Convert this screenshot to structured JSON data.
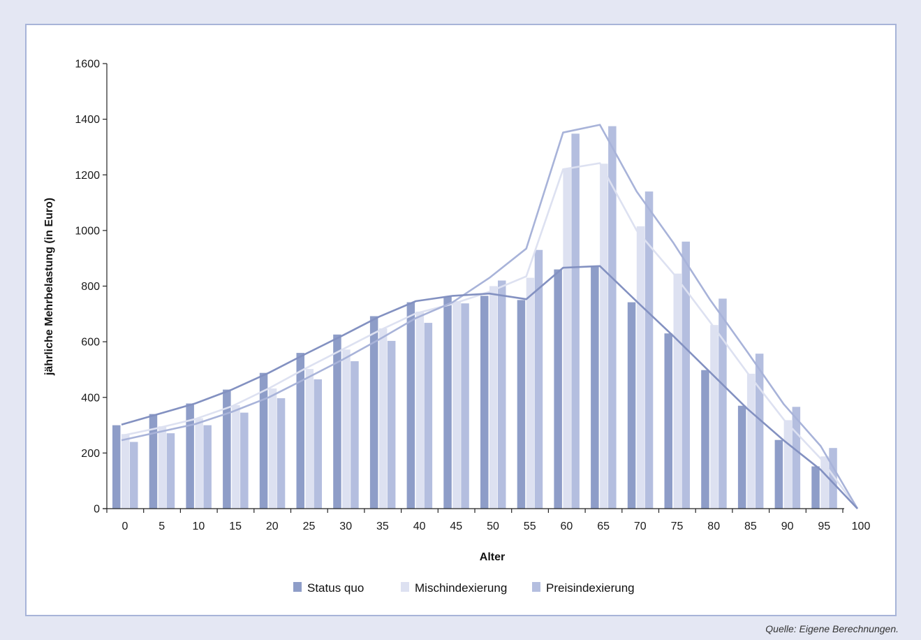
{
  "source_note": "Quelle: Eigene Berechnungen.",
  "chart_data": {
    "type": "bar",
    "xlabel": "Alter",
    "ylabel": "jährliche Mehrbelastung (in Euro)",
    "ylim": [
      0,
      1600
    ],
    "yticks": [
      0,
      200,
      400,
      600,
      800,
      1000,
      1200,
      1400,
      1600
    ],
    "categories": [
      "0",
      "5",
      "10",
      "15",
      "20",
      "25",
      "30",
      "35",
      "40",
      "45",
      "50",
      "55",
      "60",
      "65",
      "70",
      "75",
      "80",
      "85",
      "90",
      "95"
    ],
    "x_tick_labels": [
      "0",
      "5",
      "10",
      "15",
      "20",
      "25",
      "30",
      "35",
      "40",
      "45",
      "50",
      "55",
      "60",
      "65",
      "70",
      "75",
      "80",
      "85",
      "90",
      "95",
      "100"
    ],
    "grid": false,
    "legend_position": "bottom",
    "series": [
      {
        "name": "Status quo",
        "color": "#8e9dc8",
        "values": [
          300,
          340,
          378,
          428,
          488,
          560,
          626,
          692,
          742,
          763,
          765,
          750,
          860,
          870,
          742,
          630,
          498,
          370,
          247,
          152
        ],
        "trend": [
          302,
          340,
          378,
          428,
          488,
          556,
          622,
          690,
          746,
          765,
          773,
          753,
          866,
          872,
          745,
          620,
          490,
          360,
          245,
          140,
          0
        ]
      },
      {
        "name": "Mischindexierung",
        "color": "#dde1f1",
        "values": [
          268,
          296,
          325,
          372,
          432,
          502,
          572,
          648,
          708,
          746,
          800,
          830,
          1222,
          1240,
          1015,
          845,
          660,
          485,
          318,
          188
        ],
        "trend": [
          262,
          290,
          322,
          368,
          432,
          504,
          572,
          640,
          702,
          736,
          780,
          835,
          1220,
          1242,
          1000,
          845,
          670,
          490,
          320,
          180,
          0
        ]
      },
      {
        "name": "Preisindexierung",
        "color": "#b4bedf",
        "values": [
          240,
          271,
          300,
          345,
          397,
          465,
          530,
          603,
          668,
          738,
          820,
          930,
          1348,
          1375,
          1140,
          960,
          755,
          557,
          366,
          218
        ],
        "trend": [
          246,
          275,
          304,
          348,
          400,
          467,
          535,
          608,
          685,
          742,
          830,
          935,
          1352,
          1380,
          1140,
          955,
          750,
          565,
          375,
          225,
          0
        ]
      }
    ]
  }
}
